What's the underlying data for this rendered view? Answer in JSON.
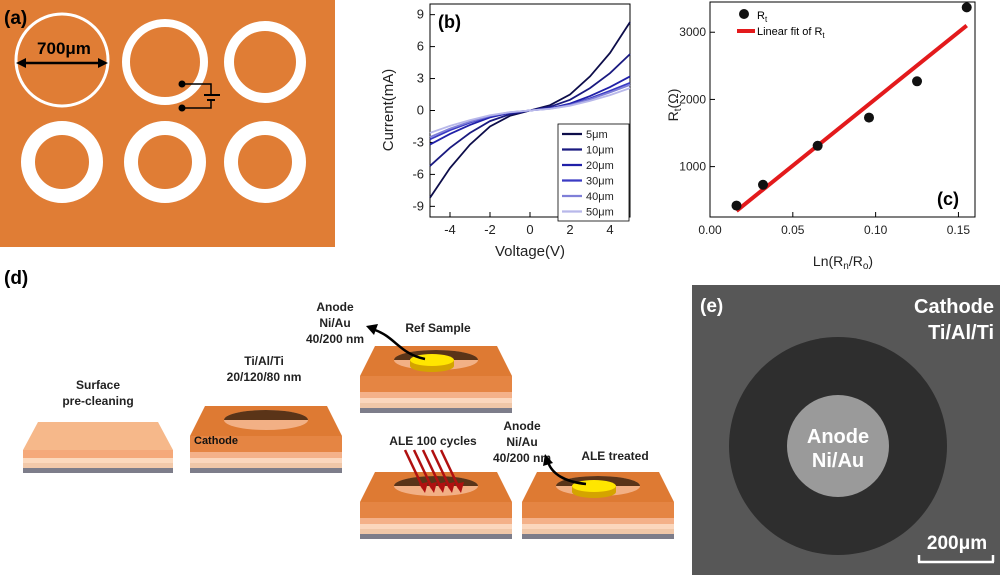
{
  "panel_a": {
    "label": "(a)",
    "dimension": "700μm"
  },
  "chart_data": [
    {
      "panel": "(b)",
      "type": "line",
      "xlabel": "Voltage(V)",
      "ylabel": "Current(mA)",
      "xlim": [
        -5,
        5
      ],
      "ylim": [
        -10,
        10
      ],
      "xticks": [
        -4,
        -2,
        0,
        2,
        4
      ],
      "yticks": [
        -9,
        -6,
        -3,
        0,
        3,
        6,
        9
      ],
      "legend_position": "bottom-right",
      "series": [
        {
          "name": "5μm",
          "color": "#0d0d4a",
          "x": [
            -5,
            -4,
            -3,
            -2,
            -1,
            0,
            1,
            2,
            3,
            4,
            5
          ],
          "y": [
            -8.2,
            -5.4,
            -3.2,
            -1.5,
            -0.5,
            0,
            0.5,
            1.5,
            3.2,
            5.4,
            8.3
          ]
        },
        {
          "name": "10μm",
          "color": "#1a1a80",
          "x": [
            -5,
            -4,
            -3,
            -2,
            -1,
            0,
            1,
            2,
            3,
            4,
            5
          ],
          "y": [
            -5.2,
            -3.5,
            -2.1,
            -1.0,
            -0.35,
            0,
            0.35,
            1.0,
            2.1,
            3.5,
            5.3
          ]
        },
        {
          "name": "20μm",
          "color": "#2020a8",
          "x": [
            -5,
            -4,
            -3,
            -2,
            -1,
            0,
            1,
            2,
            3,
            4,
            5
          ],
          "y": [
            -3.2,
            -2.2,
            -1.35,
            -0.65,
            -0.22,
            0,
            0.22,
            0.65,
            1.35,
            2.2,
            3.2
          ]
        },
        {
          "name": "30μm",
          "color": "#3b3bc4",
          "x": [
            -5,
            -4,
            -3,
            -2,
            -1,
            0,
            1,
            2,
            3,
            4,
            5
          ],
          "y": [
            -2.7,
            -1.85,
            -1.15,
            -0.55,
            -0.19,
            0,
            0.19,
            0.55,
            1.15,
            1.85,
            2.6
          ]
        },
        {
          "name": "40μm",
          "color": "#7f7fd8",
          "x": [
            -5,
            -4,
            -3,
            -2,
            -1,
            0,
            1,
            2,
            3,
            4,
            5
          ],
          "y": [
            -2.5,
            -1.7,
            -1.05,
            -0.5,
            -0.17,
            0,
            0.17,
            0.5,
            1.05,
            1.7,
            2.4
          ]
        },
        {
          "name": "50μm",
          "color": "#b8b8ea",
          "x": [
            -5,
            -4,
            -3,
            -2,
            -1,
            0,
            1,
            2,
            3,
            4,
            5
          ],
          "y": [
            -2.1,
            -1.45,
            -0.9,
            -0.45,
            -0.15,
            0,
            0.15,
            0.45,
            0.9,
            1.45,
            2.1
          ]
        }
      ]
    },
    {
      "panel": "(c)",
      "type": "scatter",
      "xlabel": "Ln(Rn/Ro)",
      "ylabel": "Rt(Ω)",
      "xlim": [
        0.0,
        0.16
      ],
      "ylim": [
        250,
        3450
      ],
      "xticks": [
        0.0,
        0.05,
        0.1,
        0.15
      ],
      "xtick_labels": [
        "0.00",
        "0.05",
        "0.10",
        "0.15"
      ],
      "yticks": [
        1000,
        2000,
        3000
      ],
      "legend_position": "top-left",
      "points": {
        "name": "Rt",
        "x": [
          0.016,
          0.032,
          0.065,
          0.096,
          0.125,
          0.155
        ],
        "y": [
          420,
          730,
          1310,
          1730,
          2270,
          3370
        ]
      },
      "fit": {
        "name": "Linear fit of Rt",
        "color": "#e31a1c",
        "x": [
          0.016,
          0.155
        ],
        "y": [
          340,
          3100
        ]
      }
    }
  ],
  "panel_d": {
    "label": "(d)",
    "step_surface": "Surface\npre-cleaning",
    "step_metal": "Ti/Al/Ti\n20/120/80 nm",
    "cathode": "Cathode",
    "ref_title": "Ref Sample",
    "anode_ref": "Anode\nNi/Au\n40/200 nm",
    "ale_title": "ALE 100 cycles",
    "anode_ale": "Anode\nNi/Au\n40/200 nm",
    "ale_treated": "ALE treated"
  },
  "panel_e": {
    "label": "(e)",
    "cathode": "Cathode\nTi/Al/Ti",
    "anode": "Anode\nNi/Au",
    "scale": "200μm"
  }
}
